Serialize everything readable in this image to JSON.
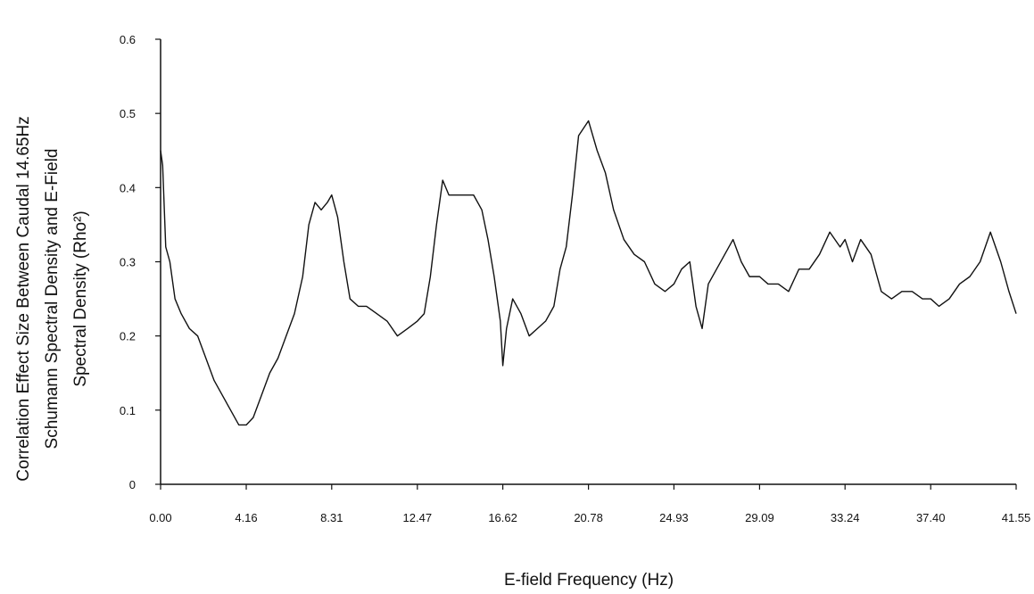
{
  "chart_data": {
    "type": "line",
    "title": "",
    "xlabel": "E-field Frequency (Hz)",
    "ylabel_lines": [
      "Correlation Effect Size Between Caudal 14.65Hz",
      "Schumann Spectral Density and E-Field",
      "Spectral Density (Rho²)"
    ],
    "xlim": [
      0,
      41.55
    ],
    "ylim": [
      0,
      0.6
    ],
    "x_ticks": [
      0,
      4.16,
      8.31,
      12.47,
      16.62,
      20.78,
      24.93,
      29.09,
      33.24,
      37.4,
      41.55
    ],
    "x_tick_labels": [
      "0.00",
      "4.16",
      "8.31",
      "12.47",
      "16.62",
      "20.78",
      "24.93",
      "29.09",
      "33.24",
      "37.40",
      "41.55"
    ],
    "y_ticks": [
      0,
      0.1,
      0.2,
      0.3,
      0.4,
      0.5,
      0.6
    ],
    "y_tick_labels": [
      "0",
      "0.1",
      "0.2",
      "0.3",
      "0.4",
      "0.5",
      "0.6"
    ],
    "grid": false,
    "line_color": "#111111",
    "series": [
      {
        "x": [
          0.0,
          0.1,
          0.25,
          0.45,
          0.7,
          1.0,
          1.4,
          1.8,
          2.2,
          2.6,
          3.0,
          3.4,
          3.8,
          4.16,
          4.5,
          4.9,
          5.3,
          5.7,
          6.1,
          6.5,
          6.9,
          7.2,
          7.5,
          7.8,
          8.1,
          8.31,
          8.6,
          8.9,
          9.2,
          9.6,
          10.0,
          10.5,
          11.0,
          11.5,
          12.0,
          12.47,
          12.8,
          13.1,
          13.4,
          13.7,
          14.0,
          14.4,
          14.8,
          15.2,
          15.6,
          15.9,
          16.2,
          16.5,
          16.62,
          16.8,
          17.1,
          17.5,
          17.9,
          18.3,
          18.7,
          19.1,
          19.4,
          19.7,
          20.0,
          20.3,
          20.78,
          21.2,
          21.6,
          22.0,
          22.5,
          23.0,
          23.5,
          24.0,
          24.5,
          24.93,
          25.3,
          25.7,
          26.0,
          26.3,
          26.6,
          27.0,
          27.4,
          27.8,
          28.2,
          28.6,
          29.09,
          29.5,
          30.0,
          30.5,
          31.0,
          31.5,
          32.0,
          32.5,
          33.0,
          33.24,
          33.6,
          34.0,
          34.5,
          35.0,
          35.5,
          36.0,
          36.5,
          37.0,
          37.4,
          37.8,
          38.3,
          38.8,
          39.3,
          39.8,
          40.3,
          40.8,
          41.2,
          41.55
        ],
        "y": [
          0.45,
          0.43,
          0.32,
          0.3,
          0.25,
          0.23,
          0.21,
          0.2,
          0.17,
          0.14,
          0.12,
          0.1,
          0.08,
          0.08,
          0.09,
          0.12,
          0.15,
          0.17,
          0.2,
          0.23,
          0.28,
          0.35,
          0.38,
          0.37,
          0.38,
          0.39,
          0.36,
          0.3,
          0.25,
          0.24,
          0.24,
          0.23,
          0.22,
          0.2,
          0.21,
          0.22,
          0.23,
          0.28,
          0.35,
          0.41,
          0.39,
          0.39,
          0.39,
          0.39,
          0.37,
          0.33,
          0.28,
          0.22,
          0.16,
          0.21,
          0.25,
          0.23,
          0.2,
          0.21,
          0.22,
          0.24,
          0.29,
          0.32,
          0.39,
          0.47,
          0.49,
          0.45,
          0.42,
          0.37,
          0.33,
          0.31,
          0.3,
          0.27,
          0.26,
          0.27,
          0.29,
          0.3,
          0.24,
          0.21,
          0.27,
          0.29,
          0.31,
          0.33,
          0.3,
          0.28,
          0.28,
          0.27,
          0.27,
          0.26,
          0.29,
          0.29,
          0.31,
          0.34,
          0.32,
          0.33,
          0.3,
          0.33,
          0.31,
          0.26,
          0.25,
          0.26,
          0.26,
          0.25,
          0.25,
          0.24,
          0.25,
          0.27,
          0.28,
          0.3,
          0.34,
          0.3,
          0.26,
          0.23
        ]
      }
    ]
  }
}
